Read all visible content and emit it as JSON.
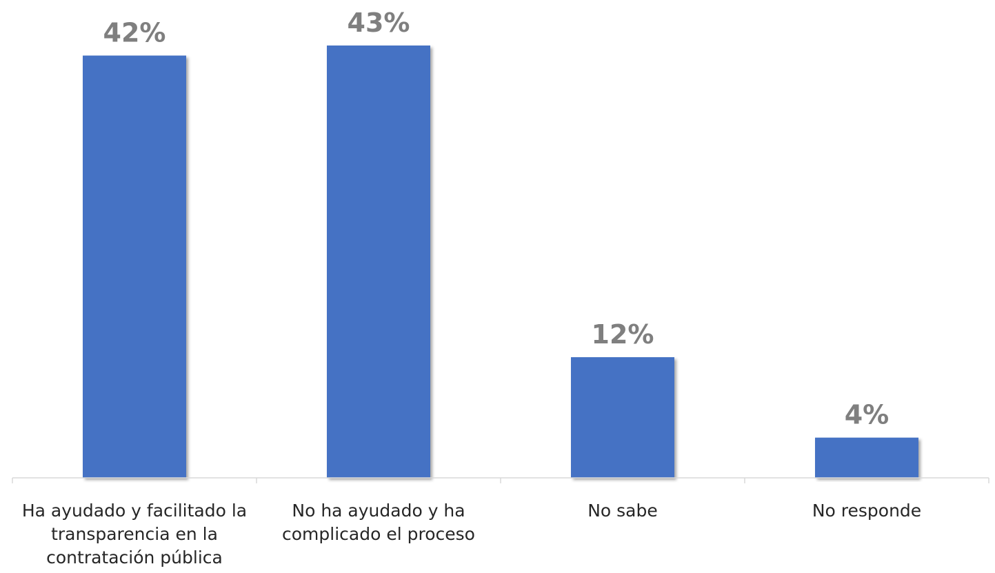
{
  "chart_data": {
    "type": "bar",
    "categories": [
      [
        "Ha ayudado y facilitado la",
        "transparencia en la",
        "contratación pública"
      ],
      [
        "No ha ayudado y ha",
        "complicado el proceso"
      ],
      [
        "No sabe"
      ],
      [
        "No responde"
      ]
    ],
    "values": [
      42,
      43,
      12,
      4
    ],
    "value_labels": [
      "42%",
      "43%",
      "12%",
      "4%"
    ],
    "title": "",
    "xlabel": "",
    "ylabel": "",
    "ylim": [
      0,
      43
    ],
    "grid": false,
    "legend": "none",
    "bar_color": "#4472c4",
    "label_color": "#7f7f7f",
    "axis_color": "#d9d9d9"
  }
}
